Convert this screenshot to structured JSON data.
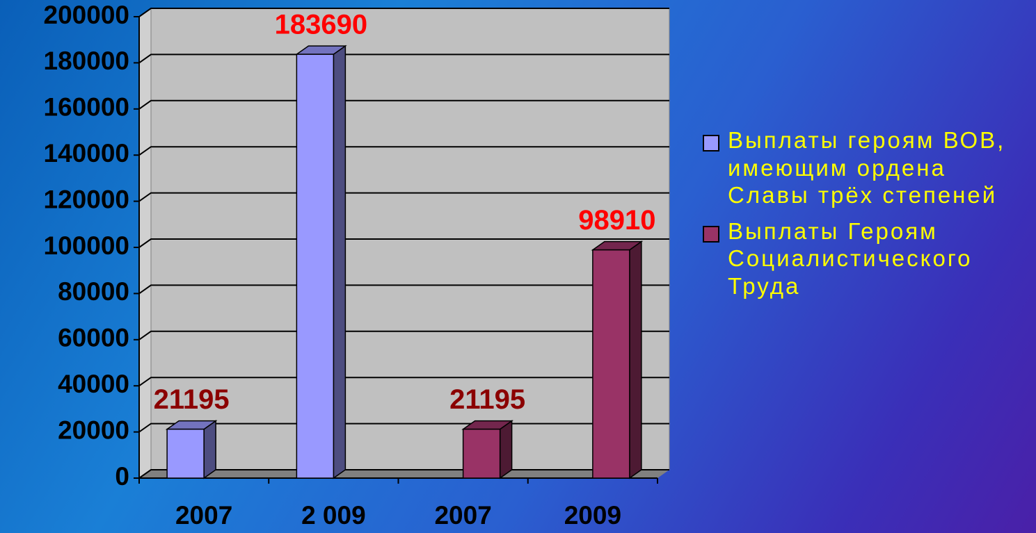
{
  "chart_data": {
    "type": "bar3d",
    "categories": [
      "2007",
      "2 009",
      "2007",
      "2009"
    ],
    "series": [
      {
        "name": "Выплаты героям ВОВ, имеющим ордена Славы трёх степеней",
        "color": "#9999ff",
        "values": [
          21195,
          183690,
          null,
          null
        ],
        "label_colors": [
          "#8b0000",
          "#ff0000",
          null,
          null
        ]
      },
      {
        "name": "Выплаты Героям Социалистического Труда",
        "color": "#993366",
        "values": [
          null,
          null,
          21195,
          98910
        ],
        "label_colors": [
          null,
          null,
          "#8b0000",
          "#ff0000"
        ]
      }
    ],
    "ylim": [
      0,
      200000
    ],
    "yticks": [
      0,
      20000,
      40000,
      60000,
      80000,
      100000,
      120000,
      140000,
      160000,
      180000,
      200000
    ],
    "grid": true
  }
}
